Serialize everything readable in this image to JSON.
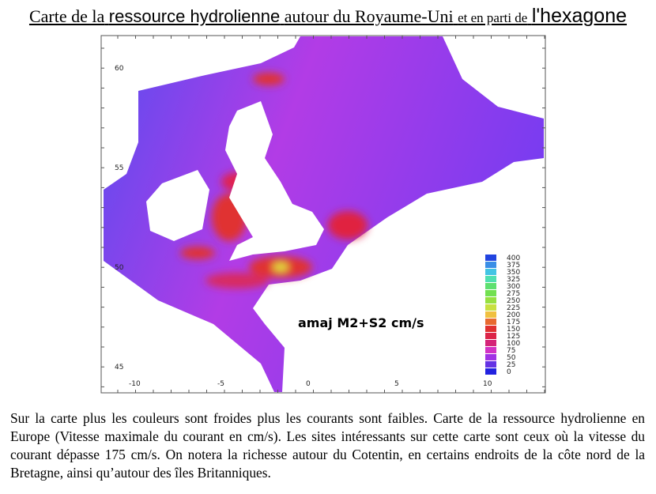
{
  "header": {
    "title": {
      "parts": [
        "Carte de la",
        "ressource hydrolienne",
        "autour du Royaume-Uni",
        "et en parti de",
        "l'hexagone"
      ]
    }
  },
  "map": {
    "lat_labels": [
      "60",
      "55",
      "50",
      "45"
    ],
    "lon_labels": [
      "-10",
      "-5",
      "0",
      "5",
      "10"
    ],
    "legend": {
      "title": "amaj M2+S2 cm/s",
      "items": [
        {
          "label": "400",
          "color": "#2244e0"
        },
        {
          "label": "375",
          "color": "#3a8ee6"
        },
        {
          "label": "350",
          "color": "#42c4e4"
        },
        {
          "label": "325",
          "color": "#4fe0b0"
        },
        {
          "label": "300",
          "color": "#5ee070"
        },
        {
          "label": "275",
          "color": "#72e050"
        },
        {
          "label": "250",
          "color": "#96e040"
        },
        {
          "label": "225",
          "color": "#c8e040"
        },
        {
          "label": "200",
          "color": "#f0c040"
        },
        {
          "label": "175",
          "color": "#e86a30"
        },
        {
          "label": "150",
          "color": "#e03030"
        },
        {
          "label": "125",
          "color": "#dc2448"
        },
        {
          "label": "100",
          "color": "#d42478"
        },
        {
          "label": "75",
          "color": "#d232c4"
        },
        {
          "label": "50",
          "color": "#a032e4"
        },
        {
          "label": "25",
          "color": "#6432e4"
        },
        {
          "label": "0",
          "color": "#2222e0"
        }
      ]
    }
  },
  "caption": {
    "text": "Sur la carte plus les couleurs sont froides plus les courants sont faibles. Carte de la ressource hydrolienne en Europe (Vitesse maximale du courant en cm/s). Les sites intéressants sur cette carte sont ceux où la vitesse du courant dépasse 175 cm/s. On notera la richesse autour du Cotentin, en certains endroits de la côte nord de la Bretagne, ainsi qu’autour des îles Britanniques."
  }
}
